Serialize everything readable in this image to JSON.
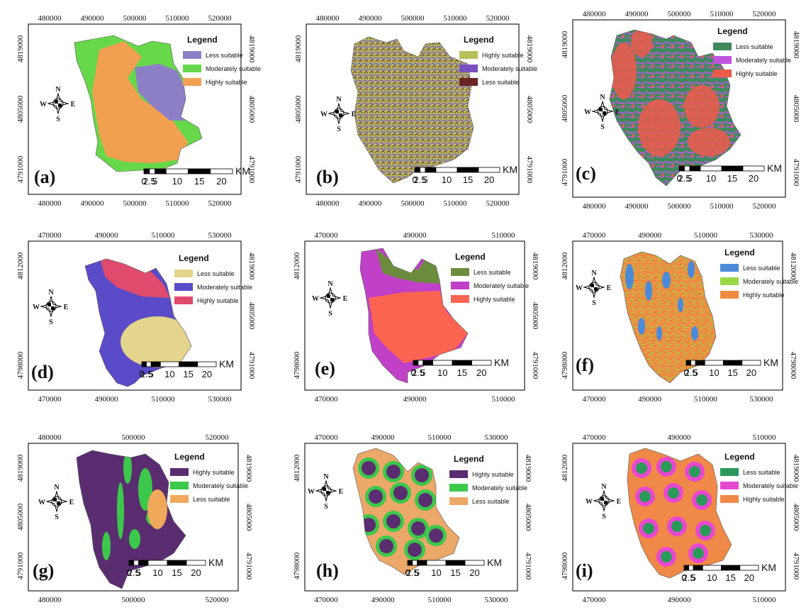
{
  "compass": {
    "n": "N",
    "s": "S",
    "e": "E",
    "w": "W"
  },
  "panels": [
    {
      "label": "(a)",
      "top_ticks": [
        "480000",
        "490000",
        "500000",
        "510000",
        "520000"
      ],
      "bottom_ticks": [
        "480000",
        "490000",
        "500000",
        "510000",
        "520000"
      ],
      "left_ticks": [
        "4819000",
        "4805000",
        "4791000"
      ],
      "right_ticks": [
        "4819000",
        "4805000",
        "4791000"
      ],
      "legend_title": "Legend",
      "legend": [
        {
          "label": "Less suitable",
          "color": "#8c7fc6"
        },
        {
          "label": "Moderately suitable",
          "color": "#66d84a"
        },
        {
          "label": "Highly suitable",
          "color": "#f0a050"
        }
      ],
      "scale_labels": [
        "0",
        "2.5",
        "5",
        "10",
        "15",
        "20"
      ],
      "scale_unit": "KM"
    },
    {
      "label": "(b)",
      "top_ticks": [
        "480000",
        "490000",
        "500000",
        "510000",
        "520000"
      ],
      "bottom_ticks": [
        "480000",
        "490000",
        "500000",
        "510000",
        "520000"
      ],
      "left_ticks": [
        "4819000",
        "4805000",
        "4791000"
      ],
      "right_ticks": [
        "4819000",
        "4805000",
        "4791000"
      ],
      "legend_title": "Legend",
      "legend": [
        {
          "label": "Highly suitable",
          "color": "#b8c05a"
        },
        {
          "label": "Moderately suitable",
          "color": "#7a50c0"
        },
        {
          "label": "Less suitable",
          "color": "#6b2424"
        }
      ],
      "scale_labels": [
        "0",
        "2.5",
        "5",
        "10",
        "15",
        "20"
      ],
      "scale_unit": "KM"
    },
    {
      "label": "(c)",
      "top_ticks": [
        "480000",
        "490000",
        "500000",
        "510000",
        "520000"
      ],
      "bottom_ticks": [
        "480000",
        "490000",
        "500000",
        "510000",
        "520000"
      ],
      "left_ticks": [
        "4819000",
        "4805000",
        "4791000"
      ],
      "right_ticks": [
        "4819000",
        "4805000",
        "4791000"
      ],
      "legend_title": "Legend",
      "legend": [
        {
          "label": "Less suitable",
          "color": "#3f8a5c"
        },
        {
          "label": "Moderately suitable",
          "color": "#c056e0"
        },
        {
          "label": "Highly suitable",
          "color": "#ec5a4a"
        }
      ],
      "scale_labels": [
        "0",
        "2.5",
        "5",
        "10",
        "15",
        "20"
      ],
      "scale_unit": "KM"
    },
    {
      "label": "(d)",
      "top_ticks": [
        "470000",
        "490000",
        "510000",
        "530000"
      ],
      "bottom_ticks": [
        "470000",
        "490000",
        "510000",
        "530000"
      ],
      "left_ticks": [
        "4812000",
        "4798000"
      ],
      "right_ticks": [
        "4819000",
        "4805000",
        "4791000"
      ],
      "legend_title": "Legend",
      "legend": [
        {
          "label": "Less suitable",
          "color": "#e4d48c"
        },
        {
          "label": "Moderately suitable",
          "color": "#5a4cc8"
        },
        {
          "label": "Highly suitable",
          "color": "#e04a6c"
        }
      ],
      "scale_labels": [
        "0",
        "2.5",
        "5",
        "10",
        "15",
        "20"
      ],
      "scale_unit": "KM"
    },
    {
      "label": "(e)",
      "top_ticks": [
        "470000",
        "490000",
        "510000"
      ],
      "bottom_ticks": [
        "470000",
        "490000",
        "510000"
      ],
      "left_ticks": [
        "4812000",
        "4798000"
      ],
      "right_ticks": [
        "4819000",
        "4805000",
        "4791000"
      ],
      "legend_title": "Legend",
      "legend": [
        {
          "label": "Less suitable",
          "color": "#6a8c3c"
        },
        {
          "label": "Moderately suitable",
          "color": "#c040c8"
        },
        {
          "label": "Highly suitable",
          "color": "#fa6450"
        }
      ],
      "scale_labels": [
        "0",
        "2.5",
        "5",
        "10",
        "15",
        "20"
      ],
      "scale_unit": "KM"
    },
    {
      "label": "(f)",
      "top_ticks": [
        "470000",
        "490000",
        "510000",
        "530000"
      ],
      "bottom_ticks": [
        "470000",
        "490000",
        "510000",
        "530000"
      ],
      "left_ticks": [
        "4812000",
        "4798000"
      ],
      "right_ticks": [
        "4812000",
        "4798000"
      ],
      "legend_title": "Legend",
      "legend": [
        {
          "label": "Less suitable",
          "color": "#4a8ad8"
        },
        {
          "label": "Moderately suitable",
          "color": "#9ad848"
        },
        {
          "label": "Highly suitable",
          "color": "#f08a40"
        }
      ],
      "scale_labels": [
        "0",
        "2.5",
        "5",
        "10",
        "15",
        "20"
      ],
      "scale_unit": "KM"
    },
    {
      "label": "(g)",
      "top_ticks": [
        "480000",
        "500000",
        "520000"
      ],
      "bottom_ticks": [
        "480000",
        "500000",
        "520000"
      ],
      "left_ticks": [
        "4819000",
        "4805000",
        "4791000"
      ],
      "right_ticks": [
        "4819000",
        "4805000",
        "4791000"
      ],
      "legend_title": "Legend",
      "legend": [
        {
          "label": "Highly suitable",
          "color": "#5a2c70"
        },
        {
          "label": "Moderately suitable",
          "color": "#3cc84a"
        },
        {
          "label": "Less suitable",
          "color": "#f0a85a"
        }
      ],
      "scale_labels": [
        "0",
        "2.5",
        "5",
        "10",
        "15",
        "20"
      ],
      "scale_unit": "KM"
    },
    {
      "label": "(h)",
      "top_ticks": [
        "470000",
        "490000",
        "510000",
        "530000"
      ],
      "bottom_ticks": [
        "470000",
        "490000",
        "510000",
        "530000"
      ],
      "left_ticks": [
        "4812000",
        "4798000"
      ],
      "right_ticks": [
        "4819000",
        "4805000",
        "4791000"
      ],
      "legend_title": "Legend",
      "legend": [
        {
          "label": "Highly suitable",
          "color": "#5a2c70"
        },
        {
          "label": "Moderately suitable",
          "color": "#3cc84a"
        },
        {
          "label": "Less suitable",
          "color": "#eca868"
        }
      ],
      "scale_labels": [
        "0",
        "2.5",
        "5",
        "10",
        "15",
        "20"
      ],
      "scale_unit": "KM"
    },
    {
      "label": "(i)",
      "top_ticks": [
        "470000",
        "490000",
        "510000"
      ],
      "bottom_ticks": [
        "470000",
        "490000",
        "510000"
      ],
      "left_ticks": [
        "4812000",
        "4798000"
      ],
      "right_ticks": [
        "4819000",
        "4805000",
        "4791000"
      ],
      "legend_title": "Legend",
      "legend": [
        {
          "label": "Less suitable",
          "color": "#2a9a5a"
        },
        {
          "label": "Moderately suitable",
          "color": "#e848d0"
        },
        {
          "label": "Highly suitable",
          "color": "#f08848"
        }
      ],
      "scale_labels": [
        "0",
        "2.5",
        "5",
        "10",
        "15",
        "20"
      ],
      "scale_unit": "KM"
    }
  ]
}
